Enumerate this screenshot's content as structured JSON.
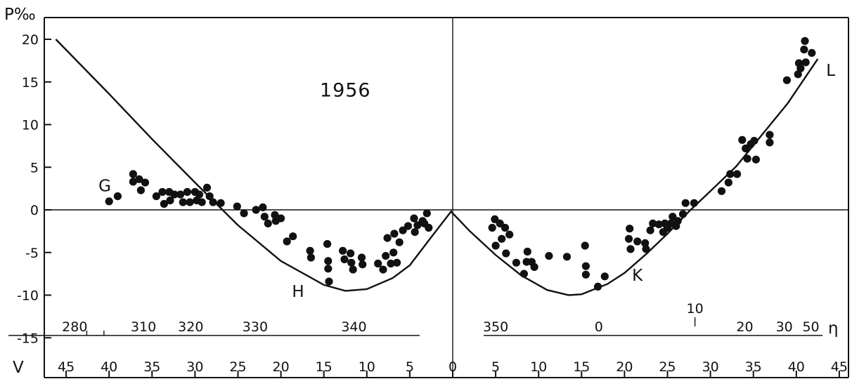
{
  "chart_data": {
    "type": "scatter",
    "ylabel": "P‰",
    "xlabel": "V",
    "ylim": [
      -15,
      20
    ],
    "y_ticks": [
      "20",
      "15",
      "10",
      "5",
      "0",
      "-5",
      "-10",
      "-15"
    ],
    "y_tick_values": [
      20,
      15,
      10,
      5,
      0,
      -5,
      -10,
      -15
    ],
    "x_ticks": [
      "45",
      "40",
      "35",
      "30",
      "25",
      "20",
      "15",
      "10",
      "5",
      "0",
      "5",
      "10",
      "15",
      "20",
      "25",
      "30",
      "35",
      "40",
      "45"
    ],
    "x_tick_values": [
      -45,
      -40,
      -35,
      -30,
      -25,
      -20,
      -15,
      -10,
      -5,
      0,
      5,
      10,
      15,
      20,
      25,
      30,
      35,
      40,
      45
    ],
    "xlim": [
      -47,
      47
    ],
    "eta_left_ticks": [
      "280",
      "310",
      "320",
      "330",
      "340"
    ],
    "eta_left_values": [
      -44,
      -36,
      -30.5,
      -23,
      -11.5
    ],
    "eta_right_ticks": [
      "350",
      "0",
      "20",
      "30",
      "50"
    ],
    "eta_right_values": [
      5,
      17,
      34,
      38.6,
      41.7
    ],
    "eta_label": "η",
    "eta_ten": {
      "label": "10",
      "x": 28.2
    },
    "annotations": [
      {
        "text": "1956",
        "x": -12.5,
        "y": 13.3
      },
      {
        "text": "G",
        "x": -40.5,
        "y": 2.2
      },
      {
        "text": "H",
        "x": -18,
        "y": -10.2
      },
      {
        "text": "K",
        "x": 21.5,
        "y": -8.3
      },
      {
        "text": "L",
        "x": 44,
        "y": 15.7
      }
    ],
    "curve": [
      [
        -46.2,
        20
      ],
      [
        -40,
        13.6
      ],
      [
        -35,
        8.3
      ],
      [
        -30,
        3.2
      ],
      [
        -25,
        -1.8
      ],
      [
        -20,
        -6
      ],
      [
        -15,
        -8.8
      ],
      [
        -12.5,
        -9.5
      ],
      [
        -10,
        -9.3
      ],
      [
        -7,
        -8
      ],
      [
        -5,
        -6.5
      ],
      [
        -2.5,
        -3.2
      ],
      [
        -0.2,
        -0.2
      ],
      [
        2,
        -2.5
      ],
      [
        5,
        -5.3
      ],
      [
        8,
        -7.7
      ],
      [
        11,
        -9.4
      ],
      [
        13.5,
        -10
      ],
      [
        15,
        -9.9
      ],
      [
        18,
        -8.7
      ],
      [
        20,
        -7.4
      ],
      [
        22.5,
        -5.2
      ],
      [
        25,
        -2.8
      ],
      [
        27.5,
        -0.2
      ],
      [
        30,
        2.2
      ],
      [
        33,
        5.1
      ],
      [
        36,
        8.8
      ],
      [
        39,
        12.5
      ],
      [
        42.5,
        17.7
      ]
    ],
    "points": [
      [
        -40,
        1
      ],
      [
        -39,
        1.6
      ],
      [
        -37.2,
        4.2
      ],
      [
        -37.2,
        3.3
      ],
      [
        -36.5,
        3.6
      ],
      [
        -36.3,
        2.3
      ],
      [
        -35.8,
        3.2
      ],
      [
        -34.5,
        1.6
      ],
      [
        -33.8,
        2.1
      ],
      [
        -33.6,
        0.7
      ],
      [
        -33,
        2.1
      ],
      [
        -32.9,
        1.1
      ],
      [
        -32.4,
        1.8
      ],
      [
        -31.7,
        1.8
      ],
      [
        -31.4,
        0.9
      ],
      [
        -30.9,
        2.1
      ],
      [
        -30.6,
        0.9
      ],
      [
        -30,
        2.1
      ],
      [
        -29.8,
        1.1
      ],
      [
        -29.5,
        1.8
      ],
      [
        -29.2,
        0.9
      ],
      [
        -28.6,
        2.6
      ],
      [
        -28.3,
        1.6
      ],
      [
        -27.9,
        0.9
      ],
      [
        -27,
        0.8
      ],
      [
        -25.1,
        0.4
      ],
      [
        -24.3,
        -0.4
      ],
      [
        -22.9,
        0
      ],
      [
        -22.1,
        0.3
      ],
      [
        -21.9,
        -0.8
      ],
      [
        -21.5,
        -1.6
      ],
      [
        -20.7,
        -0.6
      ],
      [
        -20.6,
        -1.3
      ],
      [
        -20,
        -1
      ],
      [
        -19.3,
        -3.7
      ],
      [
        -18.6,
        -3.1
      ],
      [
        -16.6,
        -4.8
      ],
      [
        -16.5,
        -5.6
      ],
      [
        -14.6,
        -4
      ],
      [
        -14.5,
        -6
      ],
      [
        -14.5,
        -6.9
      ],
      [
        -14.4,
        -8.4
      ],
      [
        -12.8,
        -4.8
      ],
      [
        -12.6,
        -5.8
      ],
      [
        -11.9,
        -5.1
      ],
      [
        -11.8,
        -6.2
      ],
      [
        -11.6,
        -7
      ],
      [
        -10.6,
        -5.6
      ],
      [
        -10.5,
        -6.4
      ],
      [
        -8.7,
        -6.3
      ],
      [
        -8.1,
        -7
      ],
      [
        -7.8,
        -5.4
      ],
      [
        -7.6,
        -3.3
      ],
      [
        -7.2,
        -6.3
      ],
      [
        -6.9,
        -5
      ],
      [
        -6.8,
        -2.8
      ],
      [
        -6.5,
        -6.2
      ],
      [
        -6.2,
        -3.8
      ],
      [
        -5.8,
        -2.4
      ],
      [
        -5.2,
        -1.9
      ],
      [
        -4.5,
        -1
      ],
      [
        -4.4,
        -2.6
      ],
      [
        -4.1,
        -1.8
      ],
      [
        -3.5,
        -1.3
      ],
      [
        -3.3,
        -1.6
      ],
      [
        -3,
        -0.4
      ],
      [
        -2.8,
        -2.1
      ],
      [
        4.6,
        -2.1
      ],
      [
        4.9,
        -1.1
      ],
      [
        5,
        -4.2
      ],
      [
        5.5,
        -1.6
      ],
      [
        5.7,
        -3.4
      ],
      [
        6.1,
        -2.1
      ],
      [
        6.2,
        -5.1
      ],
      [
        6.6,
        -2.9
      ],
      [
        7.4,
        -6.2
      ],
      [
        8.3,
        -7.5
      ],
      [
        8.6,
        -6.1
      ],
      [
        8.7,
        -4.9
      ],
      [
        9.2,
        -6.1
      ],
      [
        9.5,
        -6.7
      ],
      [
        11.2,
        -5.4
      ],
      [
        13.3,
        -5.5
      ],
      [
        15.4,
        -4.2
      ],
      [
        15.5,
        -6.6
      ],
      [
        15.5,
        -7.6
      ],
      [
        16.9,
        -9
      ],
      [
        17.7,
        -7.8
      ],
      [
        20.5,
        -3.4
      ],
      [
        20.6,
        -2.2
      ],
      [
        20.7,
        -4.6
      ],
      [
        21.5,
        -3.7
      ],
      [
        22.4,
        -3.9
      ],
      [
        22.5,
        -4.6
      ],
      [
        23,
        -2.4
      ],
      [
        23.3,
        -1.6
      ],
      [
        24,
        -1.7
      ],
      [
        24.5,
        -2.6
      ],
      [
        24.7,
        -1.6
      ],
      [
        25,
        -2.1
      ],
      [
        25.4,
        -1.6
      ],
      [
        25.6,
        -0.8
      ],
      [
        26,
        -1.9
      ],
      [
        26.2,
        -1.3
      ],
      [
        26.8,
        -0.5
      ],
      [
        27.1,
        0.8
      ],
      [
        28.1,
        0.8
      ],
      [
        31.3,
        2.2
      ],
      [
        32.1,
        3.2
      ],
      [
        32.3,
        4.2
      ],
      [
        33.1,
        4.2
      ],
      [
        33.7,
        8.2
      ],
      [
        34.1,
        7.2
      ],
      [
        34.3,
        6
      ],
      [
        34.7,
        7.7
      ],
      [
        35.1,
        8.1
      ],
      [
        35.3,
        5.9
      ],
      [
        36.9,
        7.9
      ],
      [
        36.9,
        8.8
      ],
      [
        38.9,
        15.2
      ],
      [
        40.2,
        15.9
      ],
      [
        40.3,
        17.2
      ],
      [
        40.5,
        16.6
      ],
      [
        40.9,
        18.8
      ],
      [
        41,
        19.8
      ],
      [
        41.1,
        17.3
      ],
      [
        41.8,
        18.4
      ]
    ]
  }
}
